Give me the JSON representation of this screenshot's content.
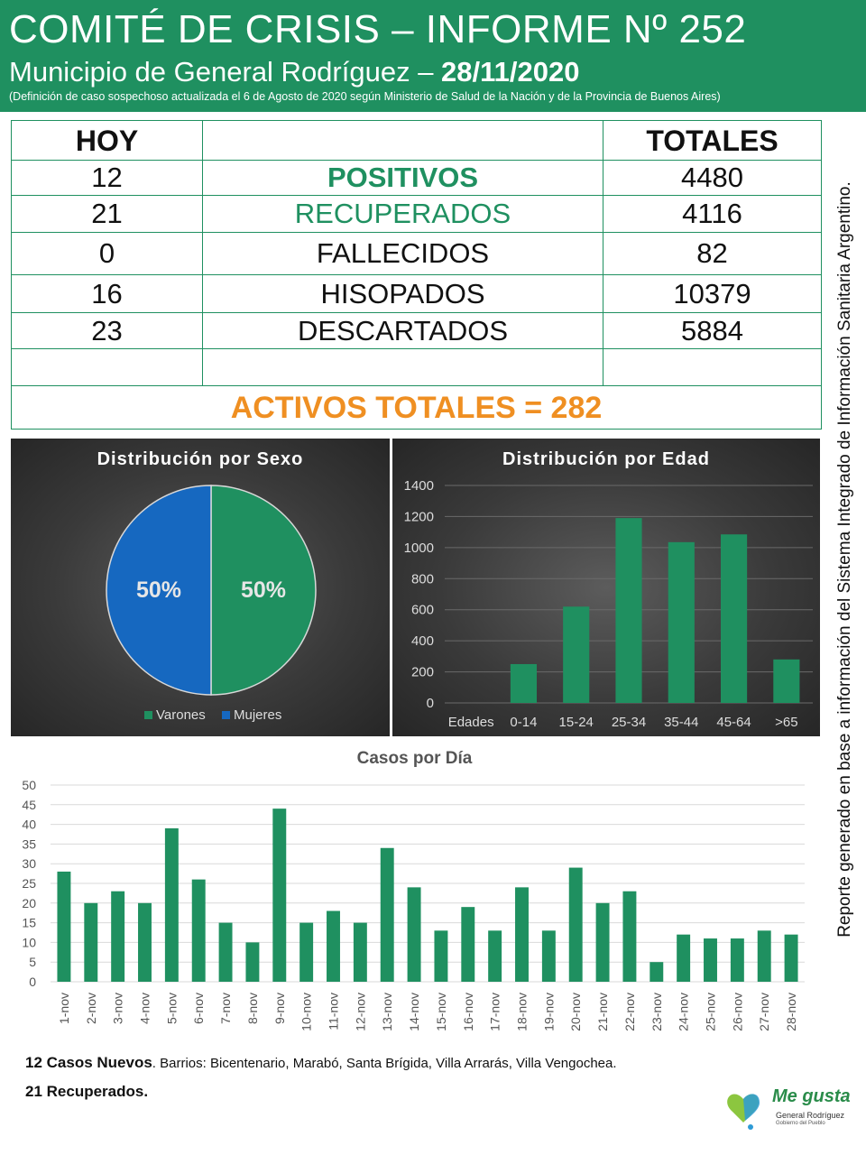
{
  "header": {
    "title": "COMITÉ DE CRISIS – INFORME Nº 252",
    "subtitle_prefix": "Municipio de General Rodríguez – ",
    "date": "28/11/2020",
    "note": "(Definición de caso sospechoso actualizada el 6 de Agosto de 2020 según Ministerio de Salud de la Nación y de la Provincia de Buenos Aires)"
  },
  "side_text": "Reporte generado en base a información del Sistema Integrado de Información Sanitaria Argentino.",
  "table": {
    "hoy_label": "HOY",
    "totales_label": "TOTALES",
    "rows": [
      {
        "hoy": "12",
        "label": "POSITIVOS",
        "total": "4480"
      },
      {
        "hoy": "21",
        "label": "RECUPERADOS",
        "total": "4116"
      },
      {
        "hoy": "0",
        "label": "FALLECIDOS",
        "total": "82"
      },
      {
        "hoy": "16",
        "label": "HISOPADOS",
        "total": "10379"
      },
      {
        "hoy": "23",
        "label": "DESCARTADOS",
        "total": "5884"
      }
    ],
    "activos": "ACTIVOS TOTALES = 282"
  },
  "colors": {
    "green": "#1f9060",
    "blue": "#1668c0",
    "orange": "#ef8f22"
  },
  "chart_data": [
    {
      "type": "pie",
      "title": "Distribución por Sexo",
      "labels": [
        "Varones",
        "Mujeres"
      ],
      "values": [
        50,
        50
      ],
      "value_labels": [
        "50%",
        "50%"
      ],
      "colors": [
        "#1f9060",
        "#1668c0"
      ],
      "legend": "bottom"
    },
    {
      "type": "bar",
      "title": "Distribución por Edad",
      "categories": [
        "Edades",
        "0-14",
        "15-24",
        "25-34",
        "35-44",
        "45-64",
        ">65"
      ],
      "values": [
        0,
        250,
        620,
        1190,
        1035,
        1085,
        280
      ],
      "ylim": [
        0,
        1400
      ],
      "yticks": [
        0,
        200,
        400,
        600,
        800,
        1000,
        1200,
        1400
      ],
      "grid": true
    },
    {
      "type": "bar",
      "title": "Casos por Día",
      "categories": [
        "1-nov",
        "2-nov",
        "3-nov",
        "4-nov",
        "5-nov",
        "6-nov",
        "7-nov",
        "8-nov",
        "9-nov",
        "10-nov",
        "11-nov",
        "12-nov",
        "13-nov",
        "14-nov",
        "15-nov",
        "16-nov",
        "17-nov",
        "18-nov",
        "19-nov",
        "20-nov",
        "21-nov",
        "22-nov",
        "23-nov",
        "24-nov",
        "25-nov",
        "26-nov",
        "27-nov",
        "28-nov"
      ],
      "values": [
        28,
        20,
        23,
        20,
        39,
        26,
        15,
        10,
        44,
        15,
        18,
        15,
        34,
        24,
        13,
        19,
        13,
        24,
        13,
        29,
        20,
        23,
        5,
        12,
        11,
        11,
        13,
        12
      ],
      "ylim": [
        0,
        50
      ],
      "yticks": [
        0,
        5,
        10,
        15,
        20,
        25,
        30,
        35,
        40,
        45,
        50
      ],
      "grid": true
    }
  ],
  "footer": {
    "line1_bold": "12 Casos Nuevos",
    "line1_rest": ". Barrios: Bicentenario,  Marabó, Santa Brígida, Villa Arrarás, Villa Vengochea.",
    "line2_bold": "21 Recuperados."
  },
  "logo": {
    "name": "Me gusta",
    "line1": "General Rodríguez",
    "line2": "Gobierno del Pueblo"
  }
}
